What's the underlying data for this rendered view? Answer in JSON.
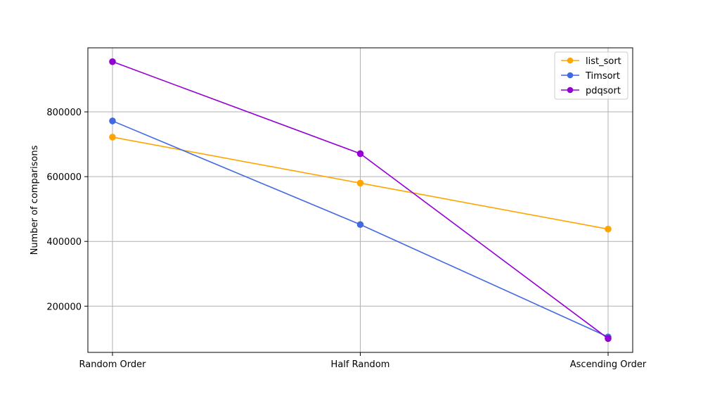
{
  "chart_data": {
    "type": "line",
    "categories": [
      "Random Order",
      "Half Random",
      "Ascending Order"
    ],
    "series": [
      {
        "name": "list_sort",
        "values": [
          722000,
          580000,
          438000
        ],
        "color": "#ffa500"
      },
      {
        "name": "Timsort",
        "values": [
          772000,
          452000,
          105000
        ],
        "color": "#4169e1"
      },
      {
        "name": "pdqsort",
        "values": [
          955000,
          671000,
          100000
        ],
        "color": "#9400d3"
      }
    ],
    "title": "",
    "xlabel": "",
    "ylabel": "Number of comparisons",
    "ylim": [
      57250,
      997750
    ],
    "yticks": [
      200000,
      400000,
      600000,
      800000
    ],
    "ytick_labels": [
      "200000",
      "400000",
      "600000",
      "800000"
    ],
    "grid": true,
    "legend_position": "top-right",
    "marker": "circle"
  }
}
